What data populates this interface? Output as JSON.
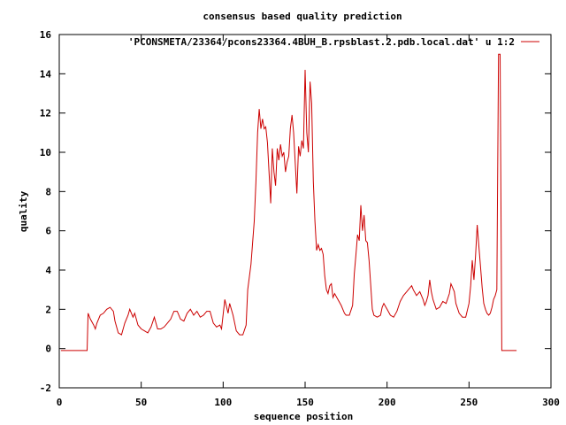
{
  "chart_data": {
    "type": "line",
    "title": "consensus based quality prediction",
    "xlabel": "sequence position",
    "ylabel": "quality",
    "xlim": [
      0,
      300
    ],
    "ylim": [
      -2,
      16
    ],
    "xticks": [
      0,
      50,
      100,
      150,
      200,
      250,
      300
    ],
    "yticks": [
      -2,
      0,
      2,
      4,
      6,
      8,
      10,
      12,
      14,
      16
    ],
    "grid": false,
    "legend_position": "top-right",
    "series": [
      {
        "name": "'PCONSMETA/23364/pcons23364.4BUH_B.rpsblast.2.pdb.local.dat' u 1:2",
        "color": "#cc0000",
        "points": [
          [
            1,
            -0.1
          ],
          [
            17,
            -0.1
          ],
          [
            17.6,
            1.8
          ],
          [
            19,
            1.5
          ],
          [
            21,
            1.2
          ],
          [
            22,
            1.0
          ],
          [
            23,
            1.3
          ],
          [
            25,
            1.7
          ],
          [
            27,
            1.8
          ],
          [
            29,
            2.0
          ],
          [
            31,
            2.1
          ],
          [
            33,
            1.9
          ],
          [
            34,
            1.4
          ],
          [
            36,
            0.8
          ],
          [
            38,
            0.7
          ],
          [
            40,
            1.3
          ],
          [
            42,
            1.7
          ],
          [
            43,
            2.0
          ],
          [
            45,
            1.6
          ],
          [
            46,
            1.8
          ],
          [
            48,
            1.2
          ],
          [
            50,
            1.0
          ],
          [
            52,
            0.9
          ],
          [
            54,
            0.8
          ],
          [
            56,
            1.1
          ],
          [
            58,
            1.6
          ],
          [
            60,
            1.0
          ],
          [
            62,
            1.0
          ],
          [
            64,
            1.1
          ],
          [
            66,
            1.3
          ],
          [
            68,
            1.5
          ],
          [
            70,
            1.9
          ],
          [
            72,
            1.9
          ],
          [
            74,
            1.5
          ],
          [
            76,
            1.4
          ],
          [
            78,
            1.8
          ],
          [
            80,
            2.0
          ],
          [
            82,
            1.7
          ],
          [
            84,
            1.9
          ],
          [
            86,
            1.6
          ],
          [
            88,
            1.7
          ],
          [
            90,
            1.9
          ],
          [
            92,
            1.9
          ],
          [
            94,
            1.3
          ],
          [
            96,
            1.1
          ],
          [
            98,
            1.2
          ],
          [
            99,
            1.0
          ],
          [
            101,
            2.5
          ],
          [
            103,
            1.8
          ],
          [
            104,
            2.3
          ],
          [
            106,
            1.7
          ],
          [
            108,
            0.9
          ],
          [
            110,
            0.7
          ],
          [
            112,
            0.7
          ],
          [
            114,
            1.2
          ],
          [
            115,
            3.0
          ],
          [
            117,
            4.3
          ],
          [
            119,
            6.5
          ],
          [
            120,
            8.5
          ],
          [
            121,
            11.0
          ],
          [
            122,
            12.2
          ],
          [
            123,
            11.2
          ],
          [
            124,
            11.7
          ],
          [
            125,
            11.2
          ],
          [
            126,
            11.3
          ],
          [
            127,
            10.5
          ],
          [
            128,
            9.0
          ],
          [
            129,
            7.4
          ],
          [
            130,
            10.2
          ],
          [
            131,
            9.0
          ],
          [
            132,
            8.3
          ],
          [
            133,
            10.2
          ],
          [
            134,
            9.6
          ],
          [
            135,
            10.4
          ],
          [
            136,
            9.8
          ],
          [
            137,
            10.0
          ],
          [
            138,
            9.0
          ],
          [
            139,
            9.5
          ],
          [
            140,
            9.8
          ],
          [
            141,
            11.2
          ],
          [
            142,
            11.9
          ],
          [
            143,
            11.0
          ],
          [
            144,
            9.4
          ],
          [
            145,
            7.9
          ],
          [
            146,
            10.3
          ],
          [
            147,
            9.8
          ],
          [
            148,
            10.6
          ],
          [
            149,
            10.2
          ],
          [
            150,
            14.2
          ],
          [
            151,
            11.0
          ],
          [
            152,
            10.0
          ],
          [
            153,
            13.6
          ],
          [
            154,
            12.5
          ],
          [
            155,
            8.5
          ],
          [
            156,
            6.5
          ],
          [
            157,
            5.0
          ],
          [
            158,
            5.3
          ],
          [
            159,
            5.0
          ],
          [
            160,
            5.1
          ],
          [
            161,
            4.8
          ],
          [
            162,
            3.7
          ],
          [
            163,
            3.0
          ],
          [
            164,
            2.8
          ],
          [
            165,
            3.2
          ],
          [
            166,
            3.3
          ],
          [
            167,
            2.6
          ],
          [
            168,
            2.8
          ],
          [
            170,
            2.5
          ],
          [
            172,
            2.2
          ],
          [
            174,
            1.8
          ],
          [
            175,
            1.7
          ],
          [
            177,
            1.7
          ],
          [
            179,
            2.2
          ],
          [
            180,
            3.8
          ],
          [
            181,
            4.8
          ],
          [
            182,
            5.8
          ],
          [
            183,
            5.5
          ],
          [
            184,
            7.3
          ],
          [
            185,
            6.0
          ],
          [
            186,
            6.8
          ],
          [
            187,
            5.5
          ],
          [
            188,
            5.4
          ],
          [
            189,
            4.5
          ],
          [
            190,
            3.3
          ],
          [
            191,
            2.0
          ],
          [
            192,
            1.7
          ],
          [
            194,
            1.6
          ],
          [
            196,
            1.7
          ],
          [
            197,
            2.1
          ],
          [
            198,
            2.3
          ],
          [
            200,
            2.0
          ],
          [
            202,
            1.7
          ],
          [
            204,
            1.6
          ],
          [
            206,
            1.9
          ],
          [
            208,
            2.4
          ],
          [
            210,
            2.7
          ],
          [
            212,
            2.9
          ],
          [
            214,
            3.1
          ],
          [
            215,
            3.2
          ],
          [
            216,
            3.0
          ],
          [
            218,
            2.7
          ],
          [
            220,
            2.9
          ],
          [
            222,
            2.5
          ],
          [
            223,
            2.2
          ],
          [
            224,
            2.4
          ],
          [
            225,
            2.7
          ],
          [
            226,
            3.5
          ],
          [
            227,
            2.9
          ],
          [
            228,
            2.5
          ],
          [
            230,
            2.0
          ],
          [
            232,
            2.1
          ],
          [
            234,
            2.4
          ],
          [
            236,
            2.3
          ],
          [
            238,
            2.8
          ],
          [
            239,
            3.3
          ],
          [
            240,
            3.1
          ],
          [
            241,
            2.9
          ],
          [
            242,
            2.3
          ],
          [
            244,
            1.8
          ],
          [
            246,
            1.6
          ],
          [
            248,
            1.6
          ],
          [
            250,
            2.3
          ],
          [
            251,
            3.2
          ],
          [
            252,
            4.5
          ],
          [
            253,
            3.5
          ],
          [
            254,
            4.7
          ],
          [
            255,
            6.3
          ],
          [
            256,
            5.2
          ],
          [
            257,
            4.2
          ],
          [
            258,
            3.1
          ],
          [
            259,
            2.3
          ],
          [
            260,
            2.0
          ],
          [
            261,
            1.8
          ],
          [
            262,
            1.7
          ],
          [
            263,
            1.8
          ],
          [
            264,
            2.1
          ],
          [
            265,
            2.5
          ],
          [
            266,
            2.7
          ],
          [
            267,
            3.0
          ],
          [
            268,
            15.0
          ],
          [
            269,
            15.0
          ],
          [
            270,
            -0.1
          ],
          [
            279,
            -0.1
          ]
        ]
      }
    ]
  }
}
